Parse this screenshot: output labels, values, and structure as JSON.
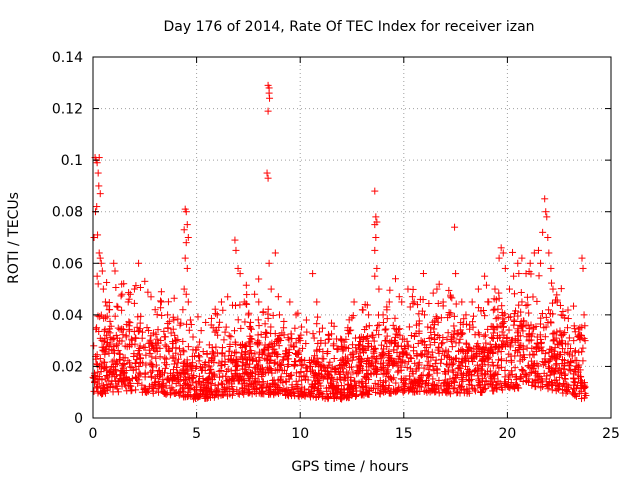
{
  "chart_data": {
    "type": "scatter",
    "title": "Day 176 of 2014, Rate Of TEC Index for receiver izan",
    "xlabel": "GPS time / hours",
    "ylabel": "ROTI / TECUs",
    "xlim": [
      0,
      25
    ],
    "ylim": [
      0,
      0.14
    ],
    "xticks": [
      0,
      5,
      10,
      15,
      20,
      25
    ],
    "xtick_labels": [
      "0",
      "5",
      "10",
      "15",
      "20",
      "25"
    ],
    "yticks": [
      0,
      0.02,
      0.04,
      0.06,
      0.08,
      0.1,
      0.12,
      0.14
    ],
    "ytick_labels": [
      "0",
      "0.02",
      "0.04",
      "0.06",
      "0.08",
      "0.1",
      "0.12",
      "0.14"
    ],
    "grid": true,
    "marker": "+",
    "color": "#ff0000",
    "series": [
      {
        "name": "ROTI",
        "points": [
          [
            0.1,
            0.101
          ],
          [
            0.15,
            0.1
          ],
          [
            0.2,
            0.099
          ],
          [
            0.25,
            0.095
          ],
          [
            0.3,
            0.101
          ],
          [
            0.12,
            0.08
          ],
          [
            0.18,
            0.082
          ],
          [
            0.28,
            0.09
          ],
          [
            0.35,
            0.087
          ],
          [
            0.22,
            0.071
          ],
          [
            0.05,
            0.07
          ],
          [
            0.3,
            0.064
          ],
          [
            0.35,
            0.062
          ],
          [
            0.4,
            0.06
          ],
          [
            0.45,
            0.057
          ],
          [
            0.2,
            0.055
          ],
          [
            0.25,
            0.052
          ],
          [
            0.5,
            0.05
          ],
          [
            0.6,
            0.045
          ],
          [
            0.8,
            0.042
          ],
          [
            1.0,
            0.06
          ],
          [
            1.2,
            0.043
          ],
          [
            1.4,
            0.048
          ],
          [
            1.7,
            0.045
          ],
          [
            2.0,
            0.05
          ],
          [
            2.2,
            0.06
          ],
          [
            2.5,
            0.053
          ],
          [
            2.8,
            0.047
          ],
          [
            3.0,
            0.042
          ],
          [
            3.3,
            0.045
          ],
          [
            3.6,
            0.04
          ],
          [
            3.9,
            0.038
          ],
          [
            4.2,
            0.036
          ],
          [
            4.45,
            0.081
          ],
          [
            4.5,
            0.08
          ],
          [
            4.55,
            0.075
          ],
          [
            4.4,
            0.073
          ],
          [
            4.6,
            0.07
          ],
          [
            4.5,
            0.068
          ],
          [
            4.45,
            0.062
          ],
          [
            4.55,
            0.058
          ],
          [
            4.4,
            0.05
          ],
          [
            4.5,
            0.048
          ],
          [
            4.6,
            0.045
          ],
          [
            4.7,
            0.038
          ],
          [
            5.0,
            0.02
          ],
          [
            5.5,
            0.025
          ],
          [
            5.8,
            0.035
          ],
          [
            6.0,
            0.04
          ],
          [
            6.2,
            0.045
          ],
          [
            6.5,
            0.047
          ],
          [
            6.85,
            0.069
          ],
          [
            6.9,
            0.065
          ],
          [
            7.0,
            0.058
          ],
          [
            7.1,
            0.056
          ],
          [
            7.3,
            0.045
          ],
          [
            7.5,
            0.04
          ],
          [
            7.8,
            0.048
          ],
          [
            8.0,
            0.045
          ],
          [
            8.45,
            0.129
          ],
          [
            8.5,
            0.128
          ],
          [
            8.5,
            0.126
          ],
          [
            8.52,
            0.124
          ],
          [
            8.45,
            0.119
          ],
          [
            8.4,
            0.095
          ],
          [
            8.45,
            0.093
          ],
          [
            8.5,
            0.06
          ],
          [
            8.6,
            0.05
          ],
          [
            8.8,
            0.064
          ],
          [
            9.0,
            0.04
          ],
          [
            9.2,
            0.035
          ],
          [
            9.5,
            0.045
          ],
          [
            9.8,
            0.04
          ],
          [
            10.0,
            0.03
          ],
          [
            10.3,
            0.038
          ],
          [
            10.6,
            0.056
          ],
          [
            10.8,
            0.045
          ],
          [
            11.0,
            0.03
          ],
          [
            11.3,
            0.025
          ],
          [
            11.6,
            0.028
          ],
          [
            12.0,
            0.03
          ],
          [
            12.3,
            0.035
          ],
          [
            12.6,
            0.045
          ],
          [
            13.0,
            0.042
          ],
          [
            13.3,
            0.04
          ],
          [
            13.6,
            0.088
          ],
          [
            13.65,
            0.078
          ],
          [
            13.7,
            0.076
          ],
          [
            13.6,
            0.075
          ],
          [
            13.65,
            0.07
          ],
          [
            13.6,
            0.065
          ],
          [
            13.7,
            0.058
          ],
          [
            13.6,
            0.055
          ],
          [
            13.8,
            0.05
          ],
          [
            14.0,
            0.04
          ],
          [
            14.3,
            0.045
          ],
          [
            14.6,
            0.054
          ],
          [
            14.9,
            0.045
          ],
          [
            15.2,
            0.05
          ],
          [
            15.5,
            0.045
          ],
          [
            15.8,
            0.046
          ],
          [
            16.0,
            0.04
          ],
          [
            16.3,
            0.035
          ],
          [
            16.6,
            0.05
          ],
          [
            16.9,
            0.045
          ],
          [
            17.2,
            0.04
          ],
          [
            17.45,
            0.074
          ],
          [
            17.5,
            0.056
          ],
          [
            17.8,
            0.045
          ],
          [
            18.0,
            0.04
          ],
          [
            18.3,
            0.045
          ],
          [
            18.6,
            0.05
          ],
          [
            18.9,
            0.055
          ],
          [
            19.1,
            0.045
          ],
          [
            19.4,
            0.05
          ],
          [
            19.6,
            0.062
          ],
          [
            19.7,
            0.066
          ],
          [
            19.8,
            0.064
          ],
          [
            19.9,
            0.058
          ],
          [
            20.1,
            0.05
          ],
          [
            20.3,
            0.055
          ],
          [
            20.5,
            0.06
          ],
          [
            20.7,
            0.062
          ],
          [
            20.9,
            0.056
          ],
          [
            21.1,
            0.06
          ],
          [
            21.3,
            0.064
          ],
          [
            21.5,
            0.065
          ],
          [
            21.6,
            0.06
          ],
          [
            21.7,
            0.072
          ],
          [
            21.8,
            0.085
          ],
          [
            21.85,
            0.08
          ],
          [
            21.9,
            0.078
          ],
          [
            21.95,
            0.07
          ],
          [
            22.0,
            0.064
          ],
          [
            22.1,
            0.058
          ],
          [
            22.2,
            0.05
          ],
          [
            22.4,
            0.045
          ],
          [
            22.6,
            0.04
          ],
          [
            22.9,
            0.035
          ],
          [
            23.2,
            0.03
          ],
          [
            23.5,
            0.035
          ],
          [
            23.6,
            0.062
          ],
          [
            23.65,
            0.058
          ],
          [
            23.7,
            0.04
          ],
          [
            23.75,
            0.03
          ]
        ],
        "envelope": {
          "hours": [
            0,
            1,
            2,
            3,
            4,
            5,
            6,
            7,
            8,
            9,
            10,
            11,
            12,
            13,
            14,
            15,
            16,
            17,
            18,
            19,
            20,
            21,
            22,
            23,
            23.8
          ],
          "base_roti": [
            0.02,
            0.024,
            0.025,
            0.022,
            0.02,
            0.014,
            0.018,
            0.02,
            0.022,
            0.02,
            0.018,
            0.016,
            0.015,
            0.02,
            0.022,
            0.024,
            0.024,
            0.022,
            0.022,
            0.024,
            0.028,
            0.03,
            0.028,
            0.02,
            0.014
          ],
          "min_roti": 0.004,
          "spread_roti": 0.025
        }
      }
    ]
  }
}
